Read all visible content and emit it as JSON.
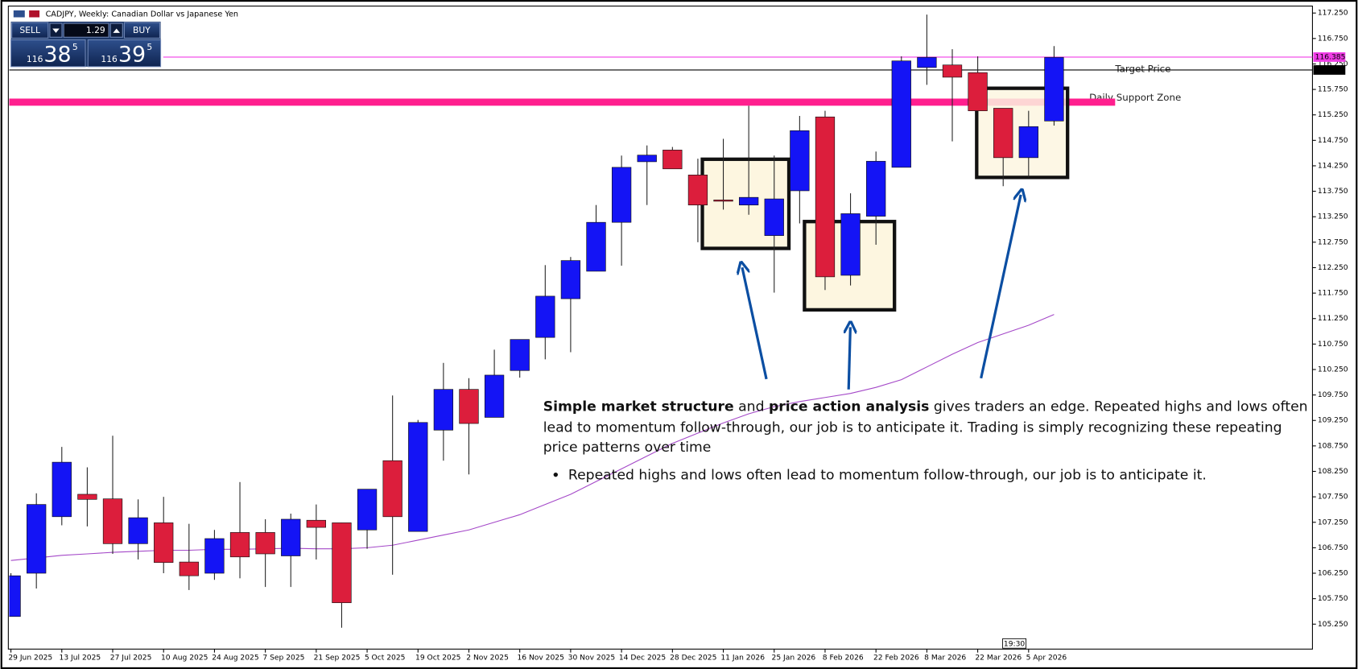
{
  "chart_data": {
    "type": "candlestick",
    "title": "CADJPY, Weekly:  Canadian Dollar vs Japanese Yen",
    "categories": [
      "29 Jun 2025",
      null,
      "13 Jul 2025",
      null,
      "27 Jul 2025",
      null,
      "10 Aug 2025",
      null,
      "24 Aug 2025",
      null,
      "7 Sep 2025",
      null,
      "21 Sep 2025",
      null,
      "5 Oct 2025",
      null,
      "19 Oct 2025",
      null,
      "2 Nov 2025",
      null,
      "16 Nov 2025",
      null,
      "30 Nov 2025",
      null,
      "14 Dec 2025",
      null,
      "28 Dec 2025",
      null,
      "11 Jan 2026",
      null,
      "25 Jan 2026",
      null,
      "8 Feb 2026",
      null,
      "22 Feb 2026",
      null,
      "8 Mar 2026",
      null,
      "22 Mar 2026",
      null,
      "5 Apr 2026",
      null
    ],
    "open": [
      105.4,
      106.25,
      107.36,
      107.8,
      107.71,
      106.83,
      107.24,
      106.47,
      106.25,
      107.05,
      107.05,
      106.59,
      107.29,
      107.24,
      107.1,
      108.46,
      107.07,
      109.06,
      109.86,
      109.31,
      110.23,
      110.88,
      111.64,
      112.18,
      113.14,
      114.33,
      114.56,
      114.07,
      113.58,
      113.48,
      112.88,
      113.76,
      115.21,
      112.1,
      113.26,
      114.22,
      116.18,
      116.23,
      116.08,
      115.38,
      114.41,
      115.13
    ],
    "high": [
      106.25,
      107.82,
      108.73,
      108.33,
      108.95,
      107.7,
      107.75,
      107.22,
      107.1,
      108.04,
      107.31,
      107.42,
      107.6,
      107.24,
      107.9,
      109.74,
      109.26,
      110.38,
      110.08,
      110.64,
      110.84,
      112.3,
      112.46,
      113.48,
      114.45,
      114.65,
      114.62,
      114.39,
      114.78,
      115.43,
      114.45,
      115.23,
      115.33,
      113.71,
      114.53,
      116.4,
      117.22,
      116.54,
      116.4,
      115.38,
      115.33,
      116.6
    ],
    "low": [
      105.4,
      105.95,
      107.19,
      107.17,
      106.63,
      106.52,
      106.25,
      105.92,
      106.12,
      106.15,
      105.98,
      105.98,
      106.52,
      105.18,
      106.73,
      106.22,
      107.07,
      108.46,
      108.19,
      109.31,
      110.09,
      110.45,
      110.59,
      112.18,
      112.29,
      113.48,
      114.19,
      112.75,
      113.39,
      113.29,
      111.76,
      113.12,
      111.81,
      111.9,
      112.7,
      114.22,
      115.84,
      114.73,
      115.33,
      113.85,
      114.02,
      115.04
    ],
    "close": [
      106.2,
      107.6,
      108.43,
      107.7,
      106.83,
      107.34,
      106.46,
      106.2,
      106.93,
      106.57,
      106.63,
      107.31,
      107.15,
      105.67,
      107.9,
      107.36,
      109.21,
      109.86,
      109.19,
      110.14,
      110.84,
      111.69,
      112.39,
      113.14,
      114.22,
      114.46,
      114.19,
      113.48,
      113.57,
      113.63,
      113.6,
      114.94,
      112.07,
      113.31,
      114.34,
      116.31,
      116.38,
      115.99,
      115.33,
      114.41,
      115.02,
      116.38
    ],
    "up_color": "#1414f5",
    "down_color": "#dc1e3c",
    "moving_average": {
      "color": "#a448c8",
      "values": [
        106.5,
        106.55,
        106.6,
        106.63,
        106.66,
        106.68,
        106.7,
        106.7,
        106.72,
        106.72,
        106.73,
        106.74,
        106.73,
        106.73,
        106.75,
        106.8,
        106.9,
        107.0,
        107.1,
        107.25,
        107.4,
        107.6,
        107.8,
        108.05,
        108.3,
        108.55,
        108.8,
        109.0,
        109.2,
        109.38,
        109.52,
        109.62,
        109.7,
        109.78,
        109.9,
        110.05,
        110.3,
        110.55,
        110.78,
        110.95,
        111.12,
        111.33
      ]
    },
    "ylim": [
      104.76,
      117.37
    ],
    "yticks": [
      {
        "value": 105.25,
        "label": "105.250"
      },
      {
        "value": 105.75,
        "label": "105.750"
      },
      {
        "value": 106.25,
        "label": "106.250"
      },
      {
        "value": 106.75,
        "label": "106.750"
      },
      {
        "value": 107.25,
        "label": "107.250"
      },
      {
        "value": 107.75,
        "label": "107.750"
      },
      {
        "value": 108.25,
        "label": "108.250"
      },
      {
        "value": 108.75,
        "label": "108.750"
      },
      {
        "value": 109.25,
        "label": "109.250"
      },
      {
        "value": 109.75,
        "label": "109.750"
      },
      {
        "value": 110.25,
        "label": "110.250"
      },
      {
        "value": 110.75,
        "label": "110.750"
      },
      {
        "value": 111.25,
        "label": "111.250"
      },
      {
        "value": 111.75,
        "label": "111.750"
      },
      {
        "value": 112.25,
        "label": "112.250"
      },
      {
        "value": 112.75,
        "label": "112.750"
      },
      {
        "value": 113.25,
        "label": "113.250"
      },
      {
        "value": 113.75,
        "label": "113.750"
      },
      {
        "value": 114.25,
        "label": "114.250"
      },
      {
        "value": 114.75,
        "label": "114.750"
      },
      {
        "value": 115.25,
        "label": "115.250"
      },
      {
        "value": 115.75,
        "label": "115.750"
      },
      {
        "value": 116.25,
        "label": "116.250"
      },
      {
        "value": 116.75,
        "label": "116.750"
      },
      {
        "value": 117.25,
        "label": "117.250"
      }
    ],
    "price_lines": [
      {
        "value": 116.385,
        "color": "#f03ce6"
      },
      {
        "value": 116.132,
        "color": "#000000"
      }
    ],
    "target": {
      "text": "Target Price",
      "value": 116.132
    },
    "support_zone": {
      "text": "Daily Support Zone",
      "low": 115.43,
      "high": 115.57,
      "color": "#ff1f8e"
    }
  },
  "trade_panel": {
    "sell": "SELL",
    "buy": "BUY",
    "lots": "1.29",
    "bid_prefix": "116",
    "bid_pips": "38",
    "bid_point": "5",
    "ask_prefix": "116",
    "ask_pips": "39",
    "ask_point": "5"
  },
  "time_marker": "19:30",
  "commentary": {
    "paragraph": [
      "Simple market structure",
      " and ",
      "price action analysis",
      " gives traders an edge. Repeated highs and lows often lead to momentum follow-through, our job is to anticipate it. Trading is simply recognizing these repeating price patterns over time"
    ],
    "bullets": [
      "Repeated highs and lows often lead to momentum follow-through, our job is to anticipate it."
    ]
  }
}
